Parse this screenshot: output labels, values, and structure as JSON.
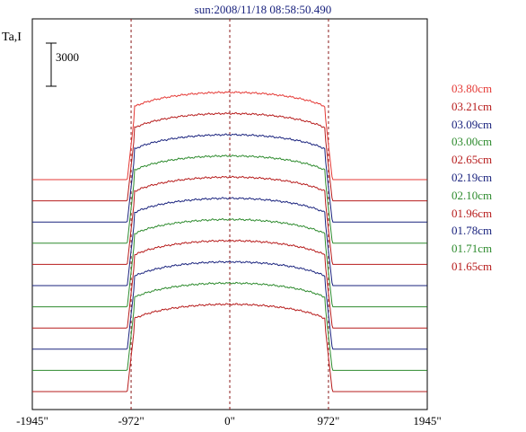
{
  "header": {
    "title": "sun:2008/11/18 08:58:50.490",
    "ylabel": "Ta,I"
  },
  "chart_data": {
    "type": "line",
    "title": "sun:2008/11/18 08:58:50.490",
    "xlabel": "",
    "ylabel": "Ta,I",
    "x_ticks": [
      "-1945\"",
      "-972\"",
      "0\"",
      "972\"",
      "1945\""
    ],
    "x_tick_values": [
      -1945,
      -972,
      0,
      972,
      1945
    ],
    "xlim": [
      -1945,
      1945
    ],
    "limb_markers": [
      -972,
      0,
      972
    ],
    "scale_bar": {
      "label": "3000",
      "value": 3000
    },
    "series": [
      {
        "name": "03.80cm",
        "color": "#e53935",
        "offset": 11,
        "values": [
          0,
          0,
          6200,
          6200,
          6200,
          0,
          0
        ]
      },
      {
        "name": "03.21cm",
        "color": "#b71c1c",
        "offset": 10,
        "values": [
          0,
          0,
          6200,
          6200,
          6200,
          0,
          0
        ]
      },
      {
        "name": "03.09cm",
        "color": "#1a237e",
        "offset": 9,
        "values": [
          0,
          0,
          6200,
          6200,
          6200,
          0,
          0
        ]
      },
      {
        "name": "03.00cm",
        "color": "#2e8b2e",
        "offset": 8,
        "values": [
          0,
          0,
          6200,
          6200,
          6200,
          0,
          0
        ]
      },
      {
        "name": "02.65cm",
        "color": "#b71c1c",
        "offset": 7,
        "values": [
          0,
          0,
          6200,
          6200,
          6200,
          0,
          0
        ]
      },
      {
        "name": "02.19cm",
        "color": "#1a237e",
        "offset": 6,
        "values": [
          0,
          0,
          6200,
          6200,
          6200,
          0,
          0
        ]
      },
      {
        "name": "02.10cm",
        "color": "#2e8b2e",
        "offset": 5,
        "values": [
          0,
          0,
          6200,
          6200,
          6200,
          0,
          0
        ]
      },
      {
        "name": "01.96cm",
        "color": "#b71c1c",
        "offset": 4,
        "values": [
          0,
          0,
          6200,
          6200,
          6200,
          0,
          0
        ]
      },
      {
        "name": "01.78cm",
        "color": "#1a237e",
        "offset": 3,
        "values": [
          0,
          0,
          6200,
          6200,
          6200,
          0,
          0
        ]
      },
      {
        "name": "01.71cm",
        "color": "#2e8b2e",
        "offset": 2,
        "values": [
          0,
          0,
          6200,
          6200,
          6200,
          0,
          0
        ]
      },
      {
        "name": "01.65cm",
        "color": "#b71c1c",
        "offset": 1,
        "values": [
          0,
          0,
          6200,
          6200,
          6200,
          0,
          0
        ]
      }
    ],
    "x": [
      -1945,
      -1100,
      -750,
      0,
      750,
      1100,
      1945
    ],
    "legend_position": "right",
    "grid": false
  }
}
